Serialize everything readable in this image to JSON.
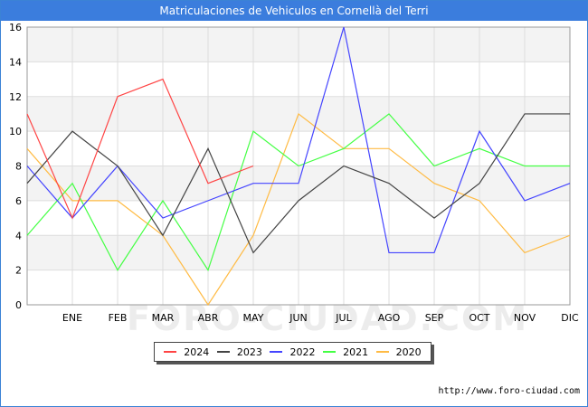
{
  "title": "Matriculaciones de Vehiculos en Cornellà del Terri",
  "source_url": "http://www.foro-ciudad.com",
  "watermark": "FORO-CIUDAD.COM",
  "chart_data": {
    "type": "line",
    "title": "Matriculaciones de Vehiculos en Cornellà del Terri",
    "x_labels": [
      "",
      "ENE",
      "FEB",
      "MAR",
      "ABR",
      "MAY",
      "JUN",
      "JUL",
      "AGO",
      "SEP",
      "OCT",
      "NOV",
      "DIC"
    ],
    "y_ticks": [
      0,
      2,
      4,
      6,
      8,
      10,
      12,
      14,
      16
    ],
    "ylim": [
      0,
      16
    ],
    "legend_position": "bottom",
    "series": [
      {
        "name": "2024",
        "color": "#ff4444",
        "values": [
          11,
          5,
          12,
          13,
          7,
          8,
          null,
          null,
          null,
          null,
          null,
          null,
          null
        ]
      },
      {
        "name": "2023",
        "color": "#444444",
        "values": [
          7,
          10,
          8,
          4,
          9,
          3,
          6,
          8,
          7,
          5,
          7,
          11,
          11
        ]
      },
      {
        "name": "2022",
        "color": "#4444ff",
        "values": [
          8,
          5,
          8,
          5,
          6,
          7,
          7,
          16,
          3,
          3,
          10,
          6,
          7
        ]
      },
      {
        "name": "2021",
        "color": "#44ff44",
        "values": [
          4,
          7,
          2,
          6,
          2,
          10,
          8,
          9,
          11,
          8,
          9,
          8,
          8
        ]
      },
      {
        "name": "2020",
        "color": "#ffbb44",
        "values": [
          9,
          6,
          6,
          4,
          0,
          4,
          11,
          9,
          9,
          7,
          6,
          3,
          4
        ]
      }
    ]
  }
}
